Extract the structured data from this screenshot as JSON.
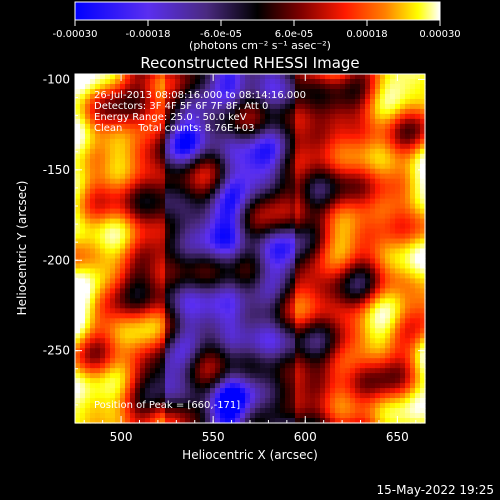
{
  "colorbar": {
    "tick_labels": [
      "-0.00030",
      "-0.00018",
      "-6.0e-05",
      "6.0e-05",
      "0.00018",
      "0.00030"
    ],
    "tick_values": [
      -0.0003,
      -0.00018,
      -6e-05,
      6e-05,
      0.00018,
      0.0003
    ],
    "range": [
      -0.0003,
      0.0003
    ],
    "units": "(photons cm⁻² s⁻¹ asec⁻²)"
  },
  "chart_data": {
    "type": "heatmap",
    "title": "Reconstructed RHESSI Image",
    "xlabel": "Heliocentric X (arcsec)",
    "ylabel": "Heliocentric Y (arcsec)",
    "xlim": [
      475,
      665
    ],
    "ylim": [
      -290,
      -97
    ],
    "x_ticks": [
      500,
      550,
      600,
      650
    ],
    "x_tick_labels": [
      "500",
      "550",
      "600",
      "650"
    ],
    "y_ticks": [
      -100,
      -150,
      -200,
      -250
    ],
    "y_tick_labels": [
      "-100",
      "-150",
      "-200",
      "-250"
    ],
    "annotations": [
      "26-Jul-2013 08:08:16.000 to 08:14:16.000",
      "Detectors: 3F 4F 5F 6F 7F 8F, Att 0",
      "Energy Range: 25.0 - 50.0 keV",
      "Clean     Total counts: 8.76E+03"
    ],
    "peak_label": "Position of Peak = [660,-171]",
    "peak_position": [
      660,
      -171
    ],
    "colormap": [
      "#0000ff",
      "#5b2ff0",
      "#4b2a80",
      "#000000",
      "#7a0000",
      "#ff1a00",
      "#ff8000",
      "#ffff00",
      "#ffffff"
    ]
  },
  "footer": {
    "timestamp": "15-May-2022 19:25"
  }
}
